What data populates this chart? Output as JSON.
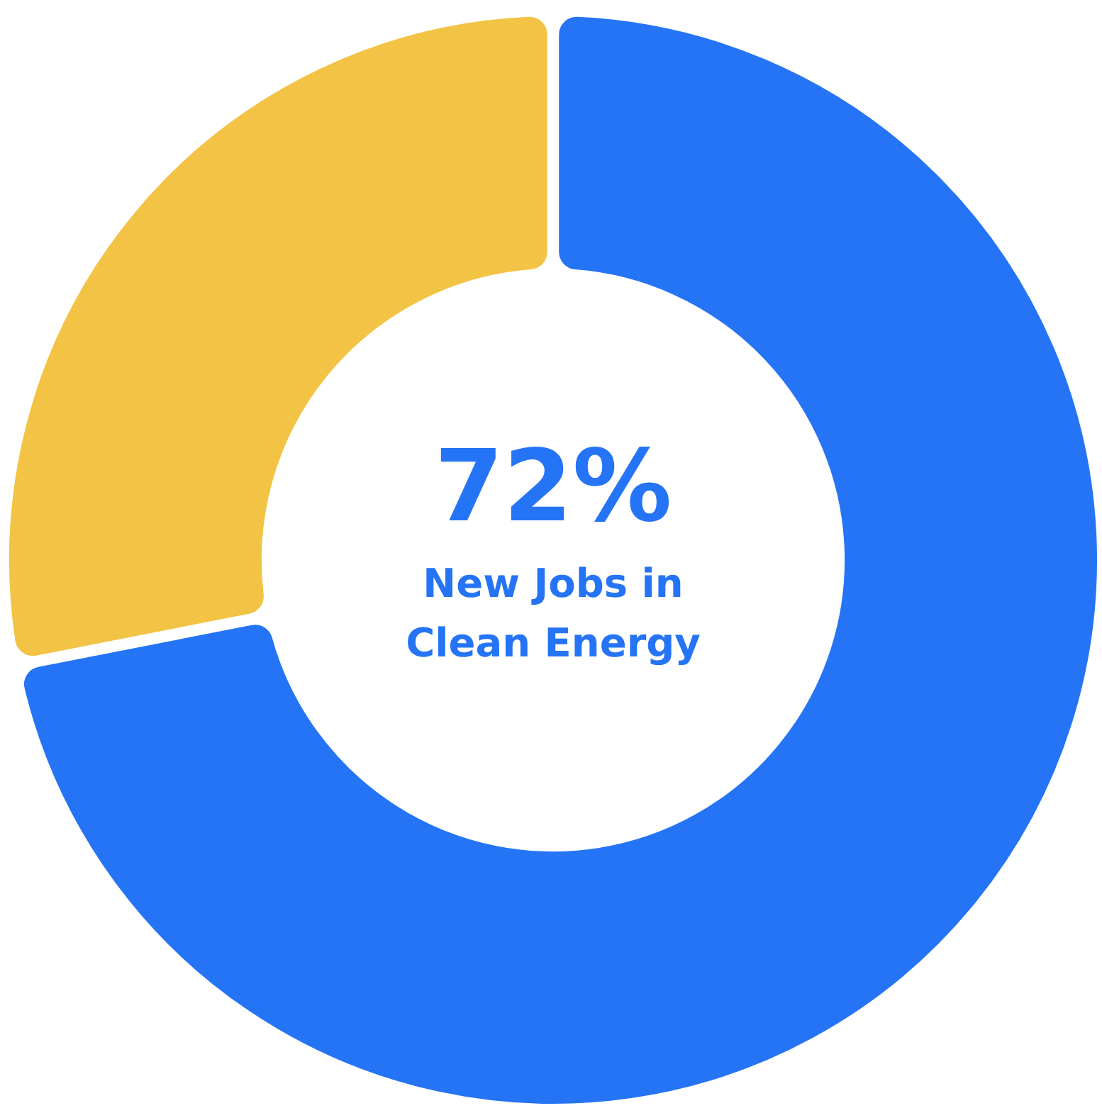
{
  "chart_data": {
    "type": "donut",
    "categories": [
      "New Jobs in Clean Energy",
      null
    ],
    "values": [
      72,
      28
    ],
    "colors": [
      "#2474f5",
      "#f2c344"
    ],
    "value_labels": [
      "72%",
      null
    ]
  }
}
